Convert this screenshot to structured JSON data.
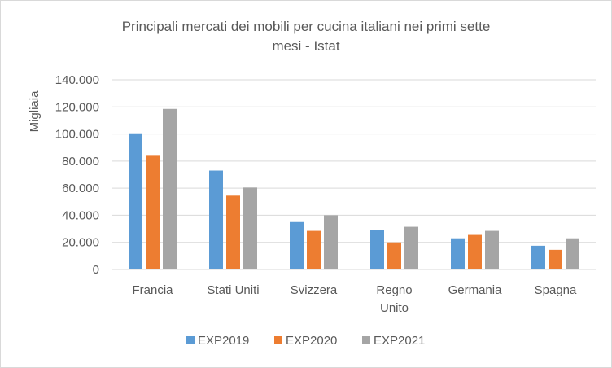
{
  "chart_data": {
    "type": "bar",
    "title_lines": [
      "Principali mercati dei mobili per cucina italiani nei primi sette",
      "mesi - Istat"
    ],
    "ylabel": "Migliaia",
    "xlabel": "",
    "ylim": [
      0,
      140000
    ],
    "yticks": [
      0,
      20000,
      40000,
      60000,
      80000,
      100000,
      120000,
      140000
    ],
    "ytick_labels": [
      "0",
      "20.000",
      "40.000",
      "60.000",
      "80.000",
      "100.000",
      "120.000",
      "140.000"
    ],
    "grid": true,
    "legend_position": "bottom",
    "categories": [
      [
        "Francia"
      ],
      [
        "Stati Uniti"
      ],
      [
        "Svizzera"
      ],
      [
        "Regno",
        "Unito"
      ],
      [
        "Germania"
      ],
      [
        "Spagna"
      ]
    ],
    "series": [
      {
        "name": "EXP2019",
        "color": "#5b9bd5",
        "values": [
          100500,
          73000,
          35000,
          29000,
          23000,
          17500
        ]
      },
      {
        "name": "EXP2020",
        "color": "#ed7d31",
        "values": [
          84500,
          54500,
          28500,
          20000,
          25500,
          14500
        ]
      },
      {
        "name": "EXP2021",
        "color": "#a5a5a5",
        "values": [
          118500,
          60500,
          40000,
          31500,
          28500,
          23000
        ]
      }
    ]
  }
}
